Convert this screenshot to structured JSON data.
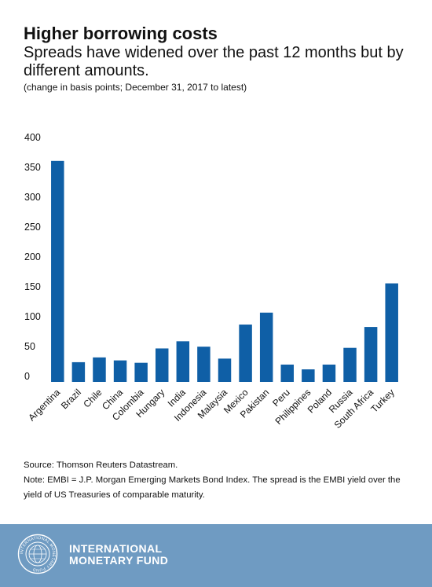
{
  "header": {
    "title": "Higher borrowing costs",
    "subtitle": "Spreads have widened over the past 12 months but by different amounts.",
    "note": "(change in basis points; December 31, 2017 to latest)"
  },
  "chart_data": {
    "type": "bar",
    "categories": [
      "Argentina",
      "Brazil",
      "Chile",
      "China",
      "Colombia",
      "Hungary",
      "India",
      "Indonesia",
      "Malaysia",
      "Mexico",
      "Pakistan",
      "Peru",
      "Philippines",
      "Poland",
      "Russia",
      "South Africa",
      "Turkey"
    ],
    "values": [
      370,
      33,
      41,
      36,
      32,
      56,
      68,
      59,
      39,
      96,
      116,
      29,
      21,
      29,
      57,
      92,
      165
    ],
    "ylim": [
      0,
      400
    ],
    "yticks": [
      0,
      50,
      100,
      150,
      200,
      250,
      300,
      350,
      400
    ],
    "grid": false,
    "bar_color": "#0f5fa6"
  },
  "footnotes": {
    "source": "Source: Thomson Reuters Datastream.",
    "note": "Note: EMBI = J.P. Morgan Emerging Markets Bond Index. The spread is the EMBI yield over the yield of US Treasuries of comparable maturity."
  },
  "footer": {
    "brand_line1": "INTERNATIONAL",
    "brand_line2": "MONETARY FUND",
    "seal_text": "INTERNATIONAL MONETARY FUND",
    "background": "#6f9bc2"
  }
}
